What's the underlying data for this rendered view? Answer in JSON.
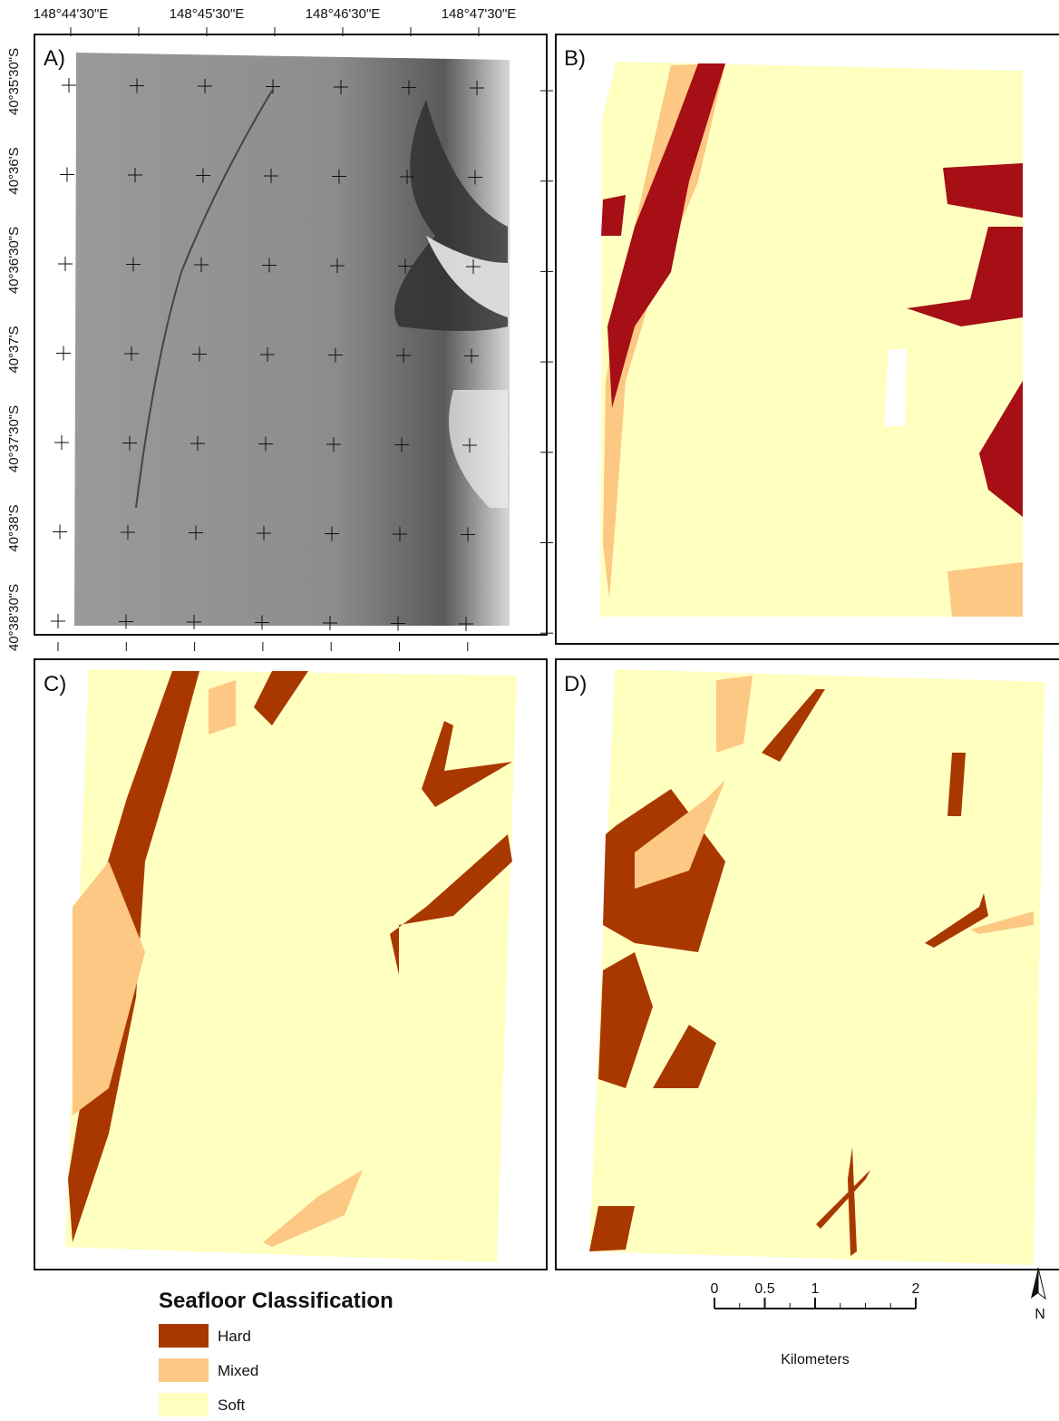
{
  "map": {
    "longitude_labels": [
      "148°44'30\"E",
      "148°45'30\"E",
      "148°46'30\"E",
      "148°47'30\"E"
    ],
    "latitude_labels": [
      "40°35'30\"S",
      "40°36'S",
      "40°36'30\"S",
      "40°37'S",
      "40°37'30\"S",
      "40°38'S",
      "40°38'30\"S"
    ],
    "panels": [
      "A)",
      "B)",
      "C)",
      "D)"
    ],
    "legend": {
      "title": "Seafloor Classification",
      "items": [
        {
          "label": "Hard",
          "color": "#a83800"
        },
        {
          "label": "Mixed",
          "color": "#fcc883"
        },
        {
          "label": "Soft",
          "color": "#ffffc0"
        }
      ]
    },
    "scale_bar": {
      "ticks": [
        0,
        0.5,
        1,
        2
      ],
      "unit": "Kilometers"
    },
    "north_arrow": "N"
  }
}
